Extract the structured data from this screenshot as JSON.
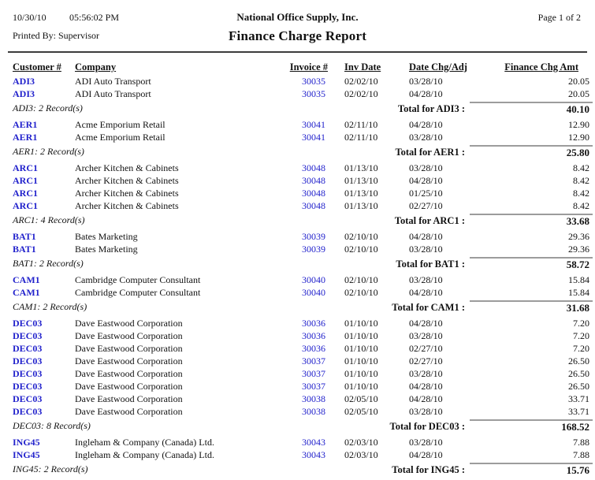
{
  "page": {
    "print_date": "10/30/10",
    "print_time": "05:56:02 PM",
    "printed_by": "Printed By: Supervisor",
    "company_name": "National Office Supply, Inc.",
    "report_title": "Finance Charge Report",
    "page_label": "Page 1 of  2"
  },
  "colors": {
    "link_blue": "#2222cc",
    "text": "#111111",
    "total_rule_gray": "#9c9c9c",
    "header_rule_dark": "#3c3c3c"
  },
  "table": {
    "columns": [
      "Customer #",
      "Company",
      "Invoice #",
      "Inv Date",
      "Date Chg/Adj",
      "Finance Chg Amt"
    ],
    "groups": [
      {
        "customer": "ADI3",
        "company": "ADI Auto Transport",
        "rows": [
          {
            "invoice": "30035",
            "inv_date": "02/02/10",
            "date_chg": "03/28/10",
            "amount": "20.05"
          },
          {
            "invoice": "30035",
            "inv_date": "02/02/10",
            "date_chg": "04/28/10",
            "amount": "20.05"
          }
        ],
        "record_label": "ADI3: 2 Record(s)",
        "total_label": "Total for ADI3 :",
        "total": "40.10"
      },
      {
        "customer": "AER1",
        "company": "Acme Emporium Retail",
        "rows": [
          {
            "invoice": "30041",
            "inv_date": "02/11/10",
            "date_chg": "04/28/10",
            "amount": "12.90"
          },
          {
            "invoice": "30041",
            "inv_date": "02/11/10",
            "date_chg": "03/28/10",
            "amount": "12.90"
          }
        ],
        "record_label": "AER1: 2 Record(s)",
        "total_label": "Total for AER1 :",
        "total": "25.80"
      },
      {
        "customer": "ARC1",
        "company": "Archer Kitchen & Cabinets",
        "rows": [
          {
            "invoice": "30048",
            "inv_date": "01/13/10",
            "date_chg": "03/28/10",
            "amount": "8.42"
          },
          {
            "invoice": "30048",
            "inv_date": "01/13/10",
            "date_chg": "04/28/10",
            "amount": "8.42"
          },
          {
            "invoice": "30048",
            "inv_date": "01/13/10",
            "date_chg": "01/25/10",
            "amount": "8.42"
          },
          {
            "invoice": "30048",
            "inv_date": "01/13/10",
            "date_chg": "02/27/10",
            "amount": "8.42"
          }
        ],
        "record_label": "ARC1: 4 Record(s)",
        "total_label": "Total for ARC1 :",
        "total": "33.68"
      },
      {
        "customer": "BAT1",
        "company": "Bates Marketing",
        "rows": [
          {
            "invoice": "30039",
            "inv_date": "02/10/10",
            "date_chg": "04/28/10",
            "amount": "29.36"
          },
          {
            "invoice": "30039",
            "inv_date": "02/10/10",
            "date_chg": "03/28/10",
            "amount": "29.36"
          }
        ],
        "record_label": "BAT1: 2 Record(s)",
        "total_label": "Total for BAT1 :",
        "total": "58.72"
      },
      {
        "customer": "CAM1",
        "company": "Cambridge Computer Consultant",
        "rows": [
          {
            "invoice": "30040",
            "inv_date": "02/10/10",
            "date_chg": "03/28/10",
            "amount": "15.84"
          },
          {
            "invoice": "30040",
            "inv_date": "02/10/10",
            "date_chg": "04/28/10",
            "amount": "15.84"
          }
        ],
        "record_label": "CAM1: 2 Record(s)",
        "total_label": "Total for CAM1 :",
        "total": "31.68"
      },
      {
        "customer": "DEC03",
        "company": "Dave Eastwood Corporation",
        "rows": [
          {
            "invoice": "30036",
            "inv_date": "01/10/10",
            "date_chg": "04/28/10",
            "amount": "7.20"
          },
          {
            "invoice": "30036",
            "inv_date": "01/10/10",
            "date_chg": "03/28/10",
            "amount": "7.20"
          },
          {
            "invoice": "30036",
            "inv_date": "01/10/10",
            "date_chg": "02/27/10",
            "amount": "7.20"
          },
          {
            "invoice": "30037",
            "inv_date": "01/10/10",
            "date_chg": "02/27/10",
            "amount": "26.50"
          },
          {
            "invoice": "30037",
            "inv_date": "01/10/10",
            "date_chg": "03/28/10",
            "amount": "26.50"
          },
          {
            "invoice": "30037",
            "inv_date": "01/10/10",
            "date_chg": "04/28/10",
            "amount": "26.50"
          },
          {
            "invoice": "30038",
            "inv_date": "02/05/10",
            "date_chg": "04/28/10",
            "amount": "33.71"
          },
          {
            "invoice": "30038",
            "inv_date": "02/05/10",
            "date_chg": "03/28/10",
            "amount": "33.71"
          }
        ],
        "record_label": "DEC03: 8 Record(s)",
        "total_label": "Total for DEC03 :",
        "total": "168.52"
      },
      {
        "customer": "ING45",
        "company": "Ingleham & Company (Canada) Ltd.",
        "rows": [
          {
            "invoice": "30043",
            "inv_date": "02/03/10",
            "date_chg": "03/28/10",
            "amount": "7.88"
          },
          {
            "invoice": "30043",
            "inv_date": "02/03/10",
            "date_chg": "04/28/10",
            "amount": "7.88"
          }
        ],
        "record_label": "ING45: 2 Record(s)",
        "total_label": "Total for ING45 :",
        "total": "15.76"
      }
    ]
  }
}
